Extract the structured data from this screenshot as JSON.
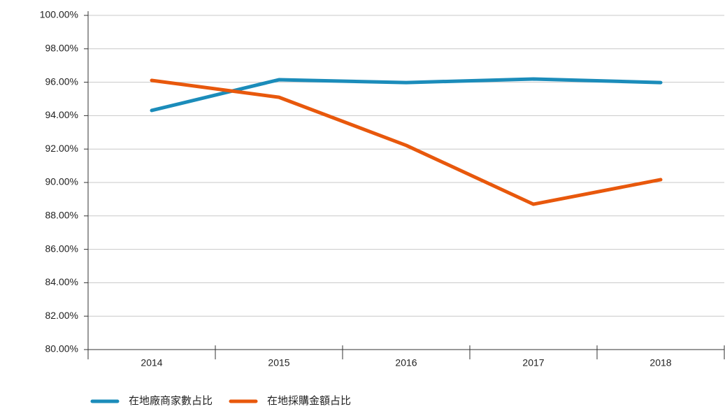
{
  "chart_data": {
    "type": "line",
    "categories": [
      "2014",
      "2015",
      "2016",
      "2017",
      "2018"
    ],
    "series": [
      {
        "name": "在地廠商家數占比",
        "color": "#1b8cba",
        "values": [
          94.31,
          96.15,
          95.98,
          96.19,
          95.98
        ]
      },
      {
        "name": "在地採購金額占比",
        "color": "#e8580c",
        "values": [
          96.11,
          95.1,
          92.22,
          88.7,
          90.17
        ]
      }
    ],
    "ylim": [
      80,
      100
    ],
    "yticks": [
      {
        "value": 80,
        "label": "80.00%"
      },
      {
        "value": 82,
        "label": "82.00%"
      },
      {
        "value": 84,
        "label": "84.00%"
      },
      {
        "value": 86,
        "label": "86.00%"
      },
      {
        "value": 88,
        "label": "88.00%"
      },
      {
        "value": 90,
        "label": "90.00%"
      },
      {
        "value": 92,
        "label": "92.00%"
      },
      {
        "value": 94,
        "label": "94.00%"
      },
      {
        "value": 96,
        "label": "96.00%"
      },
      {
        "value": 98,
        "label": "98.00%"
      },
      {
        "value": 100,
        "label": "100.00%"
      }
    ],
    "grid": true,
    "legend": "bottom-left"
  }
}
